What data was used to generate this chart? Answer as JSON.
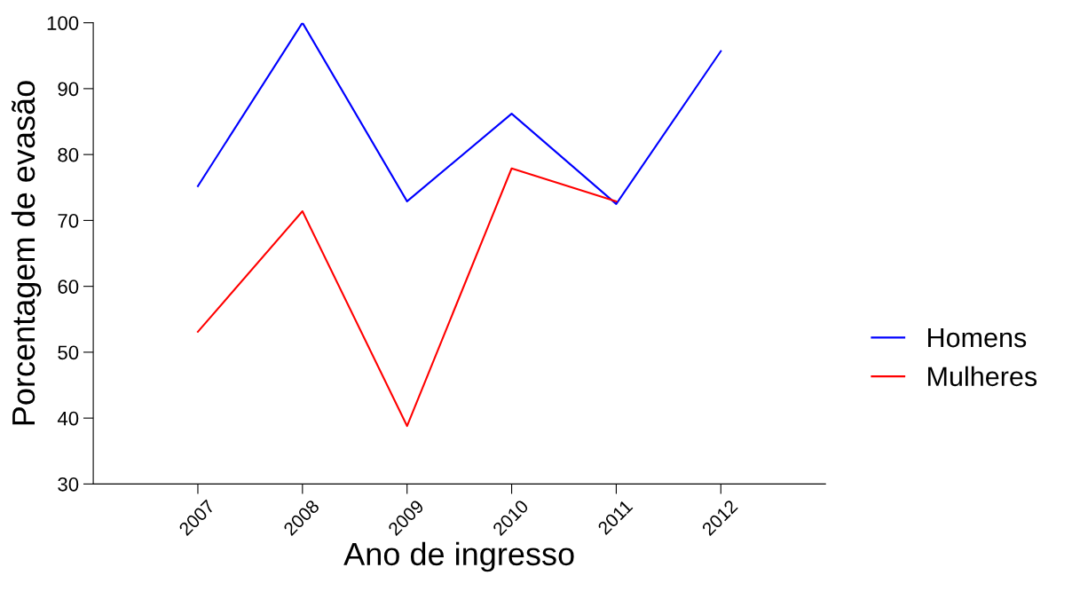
{
  "chart_data": {
    "type": "line",
    "xlabel": "Ano de ingresso",
    "ylabel": "Porcentagem de evasão",
    "categories": [
      "2007",
      "2008",
      "2009",
      "2010",
      "2011",
      "2012"
    ],
    "series": [
      {
        "name": "Homens",
        "color": "#0000ff",
        "values": [
          75.2,
          100,
          72.9,
          86.2,
          72.5,
          95.7
        ]
      },
      {
        "name": "Mulheres",
        "color": "#ff0000",
        "values": [
          53.1,
          71.4,
          38.8,
          77.9,
          72.9,
          null
        ]
      }
    ],
    "ylim": [
      30,
      100
    ],
    "yticks": [
      30,
      40,
      50,
      60,
      70,
      80,
      90,
      100
    ],
    "grid": false,
    "legend": "right",
    "marker": "none",
    "line_style": "solid"
  }
}
